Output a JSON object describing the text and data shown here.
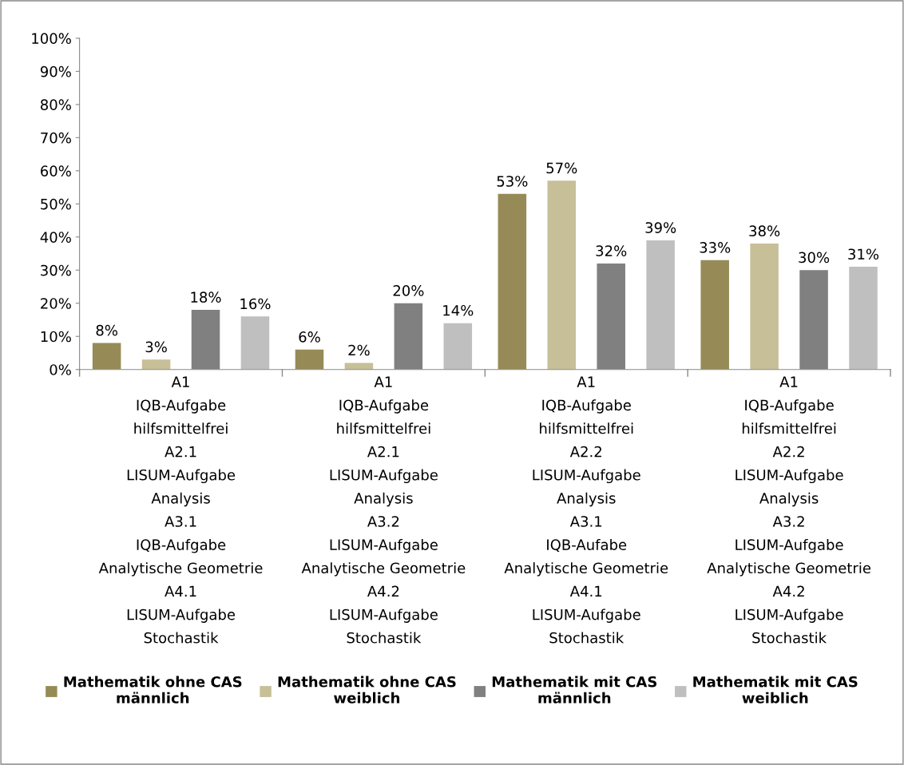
{
  "chart_data": {
    "type": "bar",
    "categories": [
      "A1\nIQB-Aufgabe\nhilfsmittelfrei\nA2.1\nLISUM-Aufgabe\nAnalysis\nA3.1\nIQB-Aufgabe\nAnalytische Geometrie\nA4.1\nLISUM-Aufgabe\nStochastik",
      "A1\nIQB-Aufgabe\nhilfsmittelfrei\nA2.1\nLISUM-Aufgabe\nAnalysis\nA3.2\nLISUM-Aufgabe\nAnalytische Geometrie\nA4.2\nLISUM-Aufgabe\nStochastik",
      "A1\nIQB-Aufgabe\nhilfsmittelfrei\nA2.2\nLISUM-Aufgabe\nAnalysis\nA3.1\nIQB-Aufabe\nAnalytische Geometrie\nA4.1\nLISUM-Aufgabe\nStochastik",
      "A1\nIQB-Aufgabe\nhilfsmittelfrei\nA2.2\nLISUM-Aufgabe\nAnalysis\nA3.2\nLISUM-Aufgabe\nAnalytische Geometrie\nA4.2\nLISUM-Aufgabe\nStochastik"
    ],
    "series": [
      {
        "name": "Mathematik ohne CAS\nmännlich",
        "color": "#968b57",
        "values": [
          8,
          6,
          53,
          33
        ],
        "value_labels": [
          "8%",
          "6%",
          "53%",
          "33%"
        ]
      },
      {
        "name": "Mathematik ohne CAS\nweiblich",
        "color": "#c7bf97",
        "values": [
          3,
          2,
          57,
          38
        ],
        "value_labels": [
          "3%",
          "2%",
          "57%",
          "38%"
        ]
      },
      {
        "name": "Mathematik mit CAS\nmännlich",
        "color": "#808080",
        "values": [
          18,
          20,
          32,
          30
        ],
        "value_labels": [
          "18%",
          "20%",
          "32%",
          "30%"
        ]
      },
      {
        "name": "Mathematik mit CAS\nweiblich",
        "color": "#bfbfbf",
        "values": [
          16,
          14,
          39,
          31
        ],
        "value_labels": [
          "16%",
          "14%",
          "39%",
          "31%"
        ]
      }
    ],
    "ylim": [
      0,
      100
    ],
    "yticks": [
      {
        "value": 0,
        "label": "0%"
      },
      {
        "value": 10,
        "label": "10%"
      },
      {
        "value": 20,
        "label": "20%"
      },
      {
        "value": 30,
        "label": "30%"
      },
      {
        "value": 40,
        "label": "40%"
      },
      {
        "value": 50,
        "label": "50%"
      },
      {
        "value": 60,
        "label": "60%"
      },
      {
        "value": 70,
        "label": "70%"
      },
      {
        "value": 80,
        "label": "80%"
      },
      {
        "value": 90,
        "label": "90%"
      },
      {
        "value": 100,
        "label": "100%"
      }
    ],
    "grid": false,
    "legend": "bottom"
  }
}
